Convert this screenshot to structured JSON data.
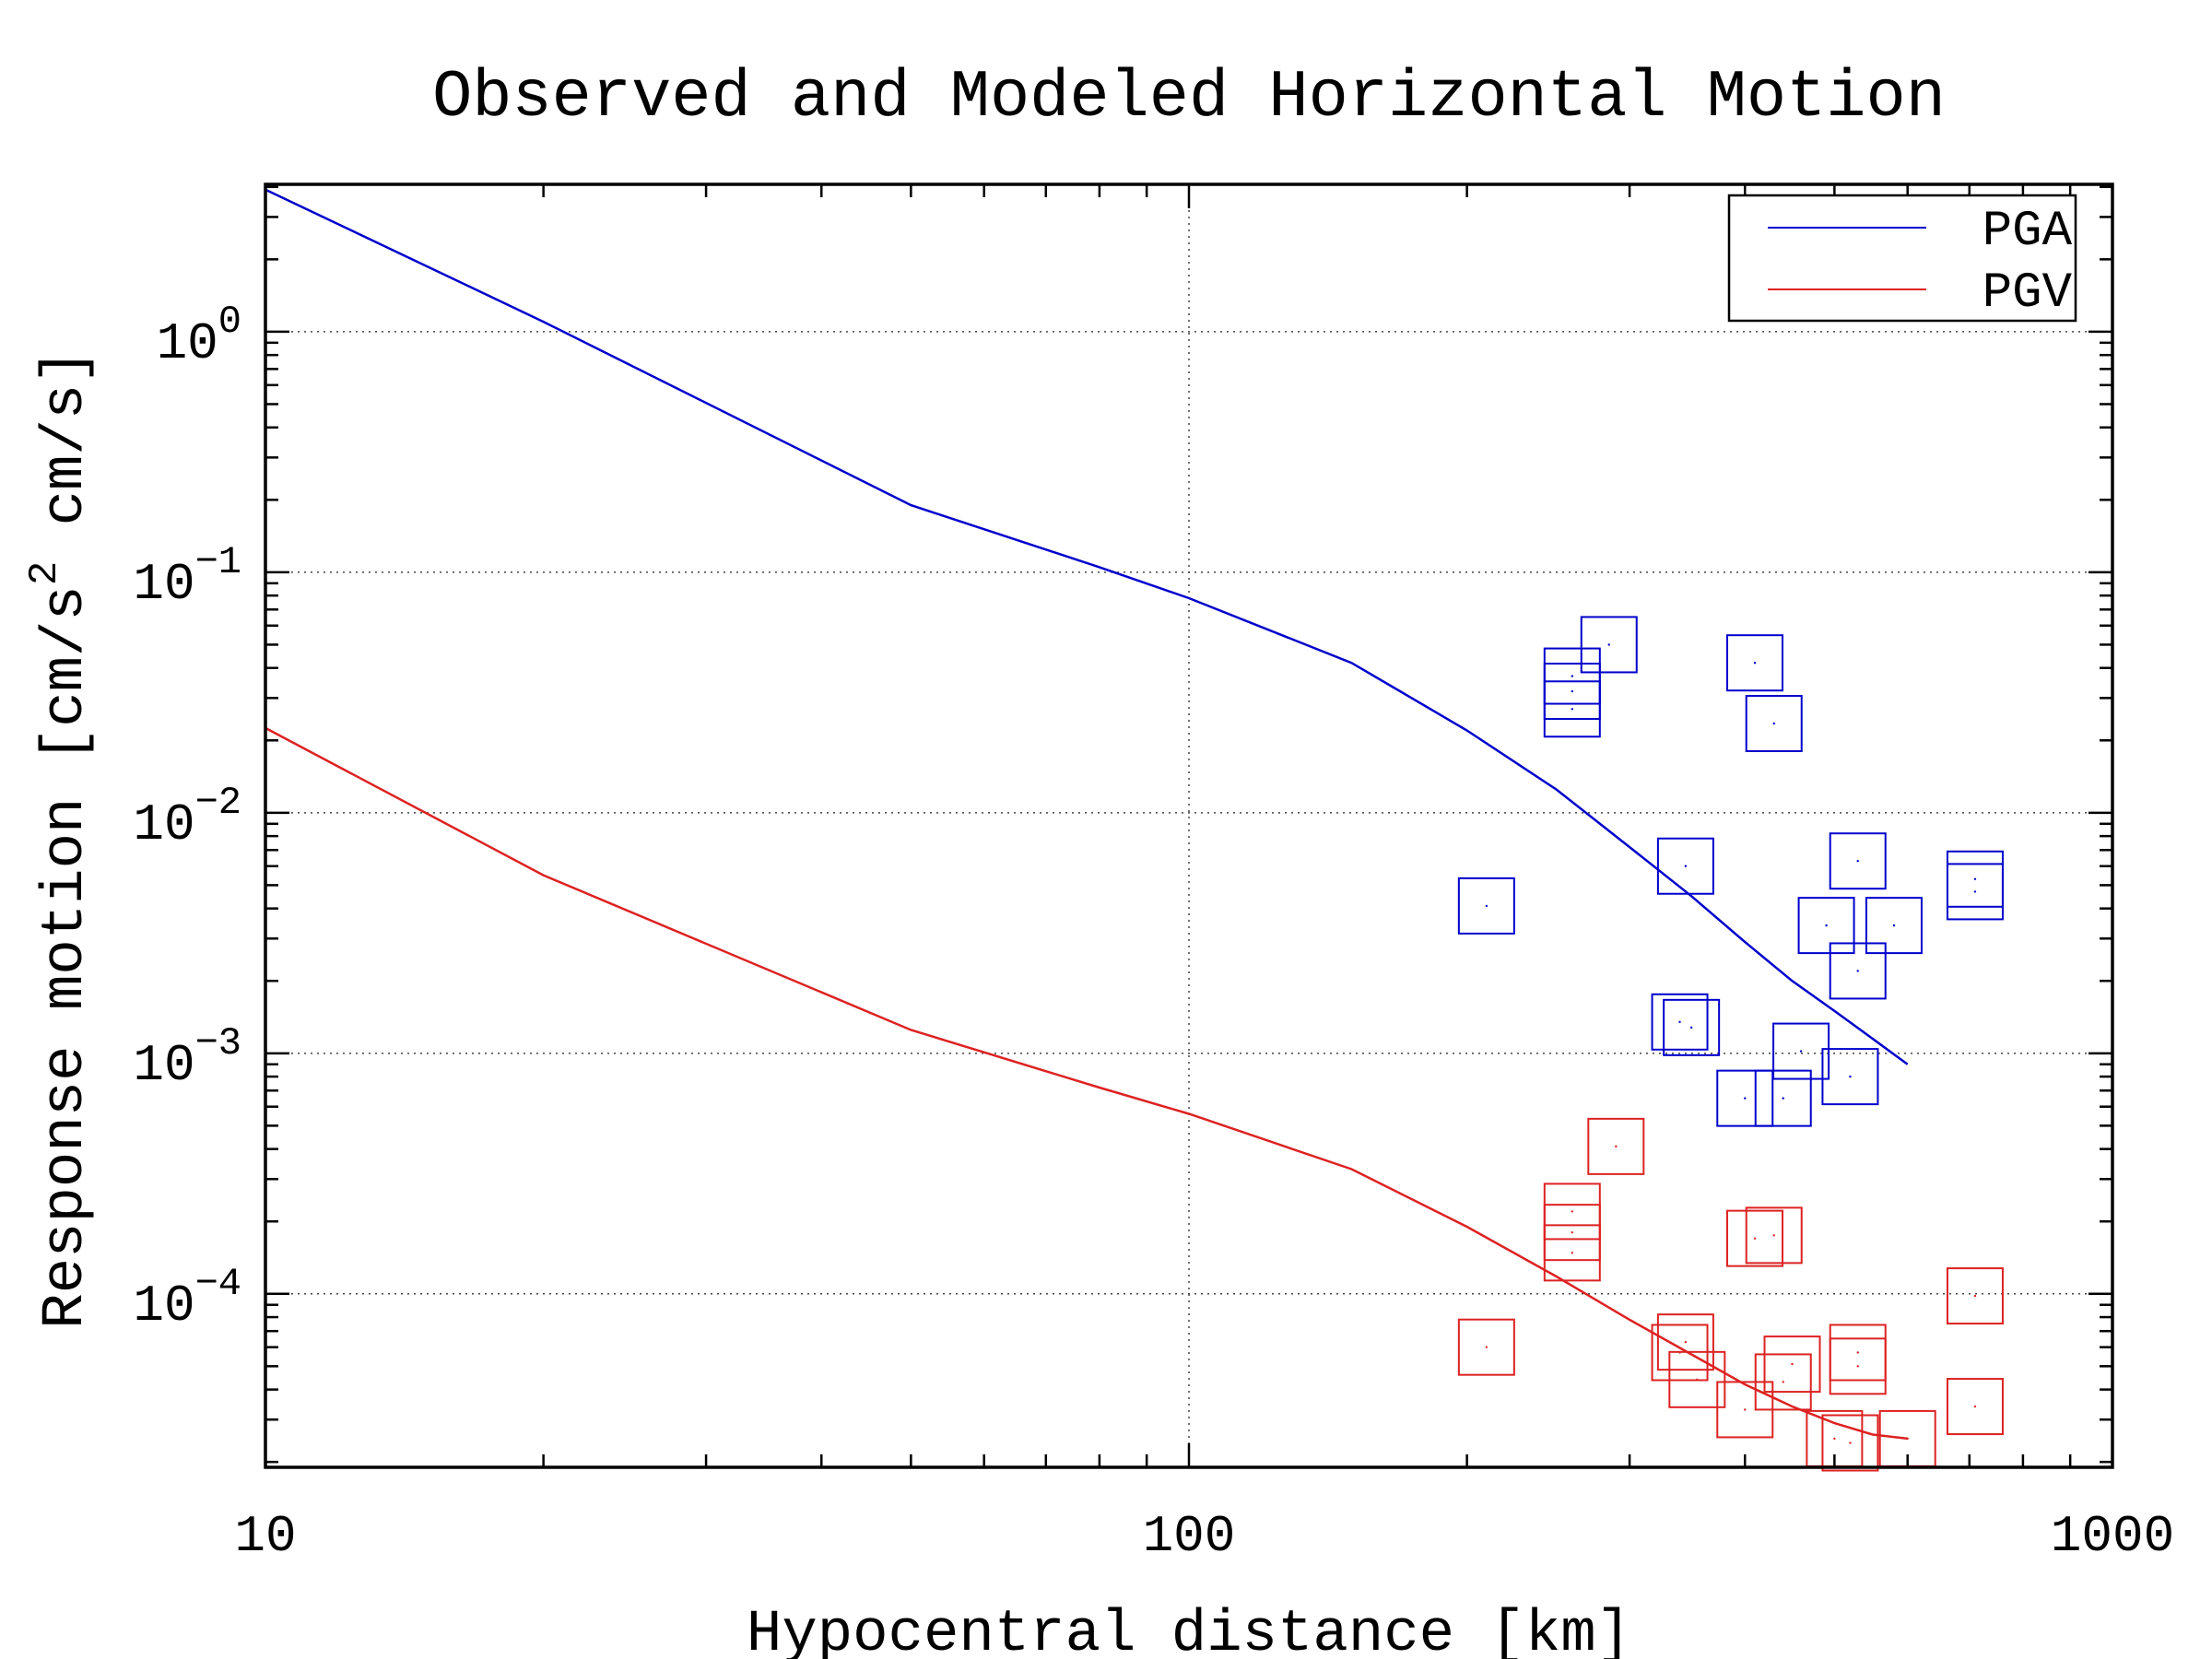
{
  "chart_data": {
    "type": "scatter",
    "title": "Observed and Modeled Horizontal Motion",
    "xlabel": "Hypocentral distance [km]",
    "ylabel": "Response motion  [cm/s",
    "ylabel_sup": "2",
    "ylabel_suffix": "  cm/s]",
    "xscale": "log",
    "yscale": "log",
    "xlim": [
      10,
      1000
    ],
    "ylim": [
      1.9e-05,
      4.1
    ],
    "grid": true,
    "legend_position": "top-right",
    "x_ticks": [
      {
        "value": 10,
        "label": "10"
      },
      {
        "value": 100,
        "label": "100"
      },
      {
        "value": 1000,
        "label": "1000"
      }
    ],
    "y_ticks": [
      {
        "value": 1,
        "base": "10",
        "exp": "0"
      },
      {
        "value": 0.1,
        "base": "10",
        "exp": "−1"
      },
      {
        "value": 0.01,
        "base": "10",
        "exp": "−2"
      },
      {
        "value": 0.001,
        "base": "10",
        "exp": "−3"
      },
      {
        "value": 0.0001,
        "base": "10",
        "exp": "−4"
      }
    ],
    "series": [
      {
        "name": "PGA",
        "color": "#0000cc",
        "line": {
          "x": [
            10,
            20,
            50,
            80,
            100,
            150,
            200,
            250,
            300,
            350,
            400,
            450,
            500,
            550,
            600
          ],
          "y": [
            3.9,
            1.1,
            0.19,
            0.105,
            0.078,
            0.042,
            0.022,
            0.0125,
            0.0072,
            0.0045,
            0.0029,
            0.002,
            0.0015,
            0.00115,
            0.0009
          ]
        },
        "observed": {
          "x": [
            210,
            260,
            260,
            260,
            285,
            345,
            340,
            350,
            400,
            410,
            430,
            440,
            460,
            490,
            520,
            530,
            530,
            580,
            710,
            710
          ],
          "y": [
            0.0041,
            0.037,
            0.032,
            0.027,
            0.05,
            0.006,
            0.00135,
            0.00128,
            0.00065,
            0.042,
            0.0235,
            0.00065,
            0.00102,
            0.0034,
            0.0008,
            0.0063,
            0.0022,
            0.0034,
            0.0053,
            0.0047
          ]
        }
      },
      {
        "name": "PGV",
        "color": "#dd2222",
        "line": {
          "x": [
            10,
            20,
            50,
            80,
            100,
            150,
            200,
            250,
            300,
            350,
            400,
            450,
            500,
            550,
            600
          ],
          "y": [
            0.0225,
            0.0055,
            0.00125,
            0.00072,
            0.00056,
            0.00033,
            0.00019,
            0.000118,
            7.8e-05,
            5.6e-05,
            4.2e-05,
            3.4e-05,
            2.9e-05,
            2.6e-05,
            2.5e-05
          ]
        },
        "observed": {
          "x": [
            210,
            260,
            260,
            260,
            290,
            340,
            345,
            355,
            400,
            410,
            430,
            440,
            450,
            500,
            520,
            530,
            530,
            600,
            710,
            710
          ],
          "y": [
            6e-05,
            0.00022,
            0.00018,
            0.000148,
            0.00041,
            5.7e-05,
            6.3e-05,
            4.4e-05,
            3.3e-05,
            0.00017,
            0.000175,
            4.3e-05,
            5.1e-05,
            2.5e-05,
            2.4e-05,
            5.7e-05,
            5e-05,
            2.5e-05,
            9.8e-05,
            3.4e-05
          ]
        }
      }
    ]
  }
}
